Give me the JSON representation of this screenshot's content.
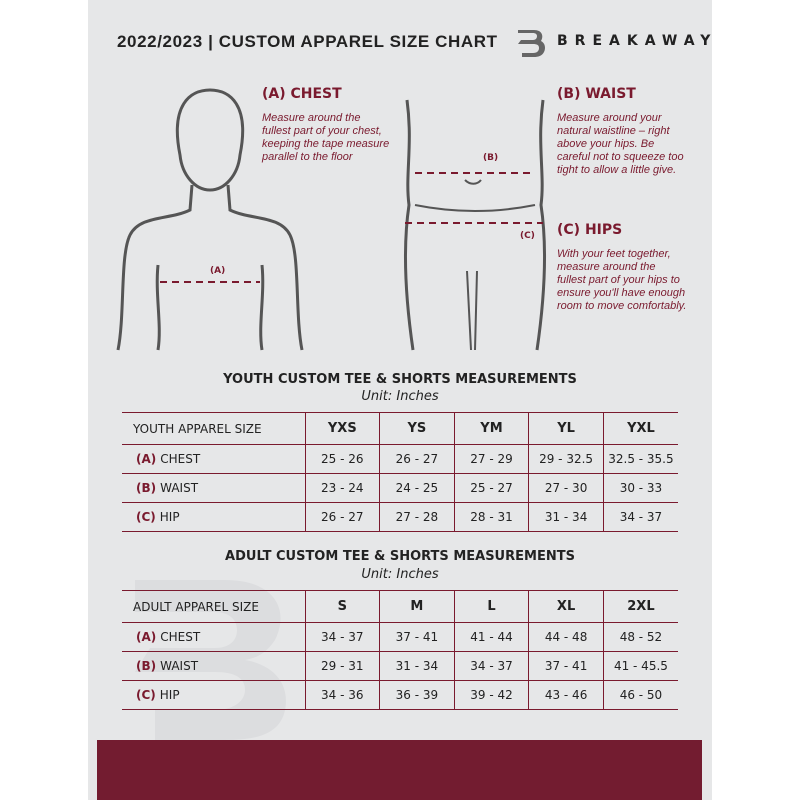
{
  "header": {
    "title": "2022/2023  |  CUSTOM APPAREL SIZE CHART",
    "brand": "BREAKAWAY"
  },
  "measures": {
    "chest": {
      "title": "(A) CHEST",
      "desc": "Measure around the fullest part of your chest, keeping the tape measure parallel to the floor",
      "marker": "(A)"
    },
    "waist": {
      "title": "(B) WAIST",
      "desc": "Measure around your natural waistline – right above your hips. Be careful not to squeeze too tight to allow a little give.",
      "marker": "(B)"
    },
    "hips": {
      "title": "(C) HIPS",
      "desc": "With your feet together, measure around the fullest part of your hips to ensure you'll have enough room to move comfortably.",
      "marker": "(C)"
    }
  },
  "youth": {
    "title": "YOUTH CUSTOM TEE & SHORTS MEASUREMENTS",
    "unit": "Unit: Inches",
    "size_label": "YOUTH APPAREL SIZE",
    "sizes": [
      "YXS",
      "YS",
      "YM",
      "YL",
      "YXL"
    ],
    "rows": [
      {
        "letter": "(A)",
        "name": "CHEST",
        "values": [
          "25 - 26",
          "26 - 27",
          "27 - 29",
          "29 - 32.5",
          "32.5 - 35.5"
        ]
      },
      {
        "letter": "(B)",
        "name": "WAIST",
        "values": [
          "23 - 24",
          "24 - 25",
          "25 - 27",
          "27 - 30",
          "30 - 33"
        ]
      },
      {
        "letter": "(C)",
        "name": "HIP",
        "values": [
          "26 - 27",
          "27 - 28",
          "28 - 31",
          "31 - 34",
          "34 - 37"
        ]
      }
    ]
  },
  "adult": {
    "title": "ADULT CUSTOM TEE & SHORTS MEASUREMENTS",
    "unit": "Unit: Inches",
    "size_label": "ADULT APPAREL SIZE",
    "sizes": [
      "S",
      "M",
      "L",
      "XL",
      "2XL"
    ],
    "rows": [
      {
        "letter": "(A)",
        "name": "CHEST",
        "values": [
          "34 - 37",
          "37 - 41",
          "41 - 44",
          "44 - 48",
          "48 - 52"
        ]
      },
      {
        "letter": "(B)",
        "name": "WAIST",
        "values": [
          "29 - 31",
          "31 - 34",
          "34 - 37",
          "37 - 41",
          "41 - 45.5"
        ]
      },
      {
        "letter": "(C)",
        "name": "HIP",
        "values": [
          "34 - 36",
          "36 - 39",
          "39 - 42",
          "43 - 46",
          "46 - 50"
        ]
      }
    ]
  },
  "colors": {
    "accent": "#7a1a2e",
    "footer": "#731c30",
    "panel": "#e6e7e8"
  }
}
